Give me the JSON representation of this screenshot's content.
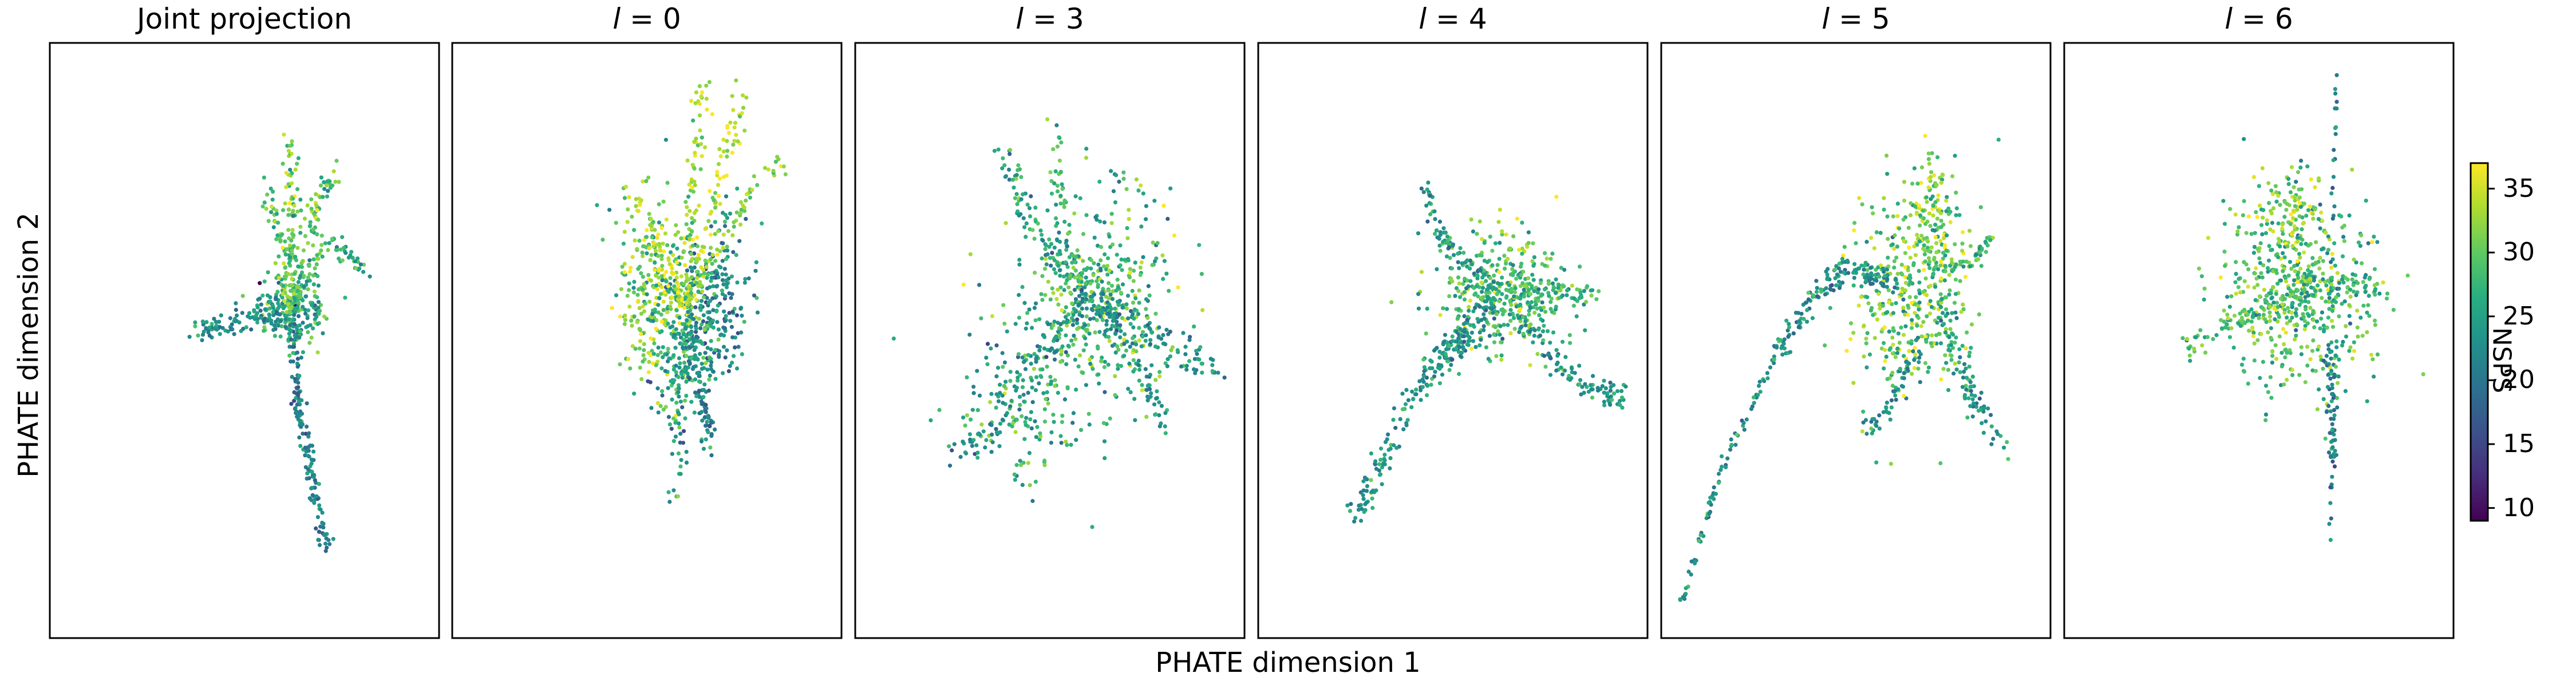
{
  "chart_data": {
    "type": "scatter",
    "xlabel": "PHATE dimension 1",
    "ylabel": "PHATE dimension 2",
    "colorbar": {
      "label": "NSPS",
      "colormap": "viridis",
      "range": [
        9,
        37
      ],
      "ticks": [
        "10",
        "15",
        "20",
        "25",
        "30",
        "35"
      ]
    },
    "panels": [
      {
        "title": "Joint projection",
        "title_math": false
      },
      {
        "title": "l = 0",
        "title_var": "l",
        "title_rest": " = 0",
        "title_math": true
      },
      {
        "title": "l = 3",
        "title_var": "l",
        "title_rest": " = 3",
        "title_math": true
      },
      {
        "title": "l = 4",
        "title_var": "l",
        "title_rest": " = 4",
        "title_math": true
      },
      {
        "title": "l = 5",
        "title_var": "l",
        "title_rest": " = 5",
        "title_math": true
      },
      {
        "title": "l = 6",
        "title_var": "l",
        "title_rest": " = 6",
        "title_math": true
      }
    ],
    "axes_ticks_shown": false,
    "grid": false
  }
}
